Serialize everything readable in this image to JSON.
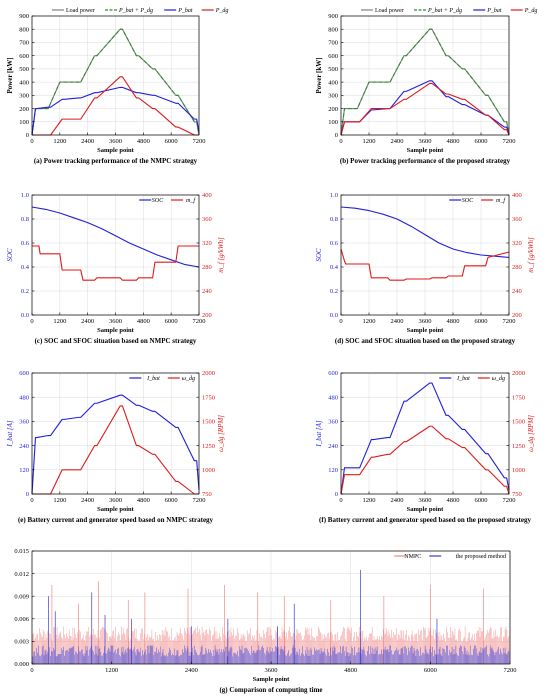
{
  "chart_data": [
    {
      "type": "line",
      "caption": "(a) Power tracking performance of the NMPC strategy",
      "xlabel": "Sample point",
      "ylabel": "Power [kW]",
      "xlim": [
        0,
        7200
      ],
      "ylim": [
        0,
        900
      ],
      "xticks": [
        0,
        1200,
        2400,
        3600,
        4800,
        6000,
        7200
      ],
      "yticks": [
        0,
        100,
        200,
        300,
        400,
        500,
        600,
        700,
        800,
        900
      ],
      "grid": true,
      "legend": "top",
      "series": [
        {
          "name": "Load power",
          "color": "#808080",
          "dash": false,
          "x": [
            0,
            150,
            200,
            600,
            700,
            1200,
            1300,
            2000,
            2100,
            2700,
            2800,
            3800,
            3900,
            4500,
            4600,
            5200,
            5300,
            6200,
            6300,
            7000,
            7100,
            7200
          ],
          "y": [
            0,
            200,
            200,
            200,
            200,
            400,
            400,
            400,
            400,
            600,
            600,
            800,
            800,
            600,
            600,
            500,
            500,
            300,
            300,
            100,
            100,
            0
          ]
        },
        {
          "name": "P_bat + P_dg",
          "color": "#2e8b2e",
          "dash": true,
          "x": [
            0,
            150,
            200,
            600,
            700,
            1200,
            1300,
            2000,
            2100,
            2700,
            2800,
            3800,
            3900,
            4500,
            4600,
            5200,
            5300,
            6200,
            6300,
            7000,
            7100,
            7200
          ],
          "y": [
            0,
            200,
            200,
            200,
            200,
            400,
            400,
            400,
            400,
            600,
            600,
            800,
            800,
            600,
            600,
            500,
            500,
            300,
            300,
            100,
            100,
            0
          ]
        },
        {
          "name": "P_bat",
          "color": "#1f1fdd",
          "dash": false,
          "x": [
            0,
            150,
            200,
            700,
            800,
            1300,
            1400,
            2000,
            2100,
            2700,
            2800,
            3800,
            3900,
            4500,
            4600,
            5200,
            5300,
            6200,
            6300,
            7000,
            7100,
            7200
          ],
          "y": [
            0,
            200,
            200,
            210,
            210,
            270,
            270,
            280,
            280,
            320,
            320,
            360,
            360,
            320,
            320,
            300,
            300,
            240,
            240,
            120,
            120,
            20
          ]
        },
        {
          "name": "P_dg",
          "color": "#e01a1a",
          "dash": false,
          "x": [
            0,
            700,
            800,
            1300,
            1400,
            2000,
            2100,
            2700,
            2800,
            3800,
            3900,
            4500,
            4600,
            5200,
            5300,
            6200,
            6300,
            7000,
            7100,
            7200
          ],
          "y": [
            0,
            0,
            0,
            120,
            120,
            120,
            120,
            280,
            280,
            440,
            440,
            280,
            280,
            200,
            200,
            60,
            60,
            0,
            0,
            0
          ]
        }
      ]
    },
    {
      "type": "line",
      "caption": "(b) Power tracking performance of the proposed strategy",
      "xlabel": "Sample point",
      "ylabel": "Power [kW]",
      "xlim": [
        0,
        7200
      ],
      "ylim": [
        0,
        900
      ],
      "xticks": [
        0,
        1200,
        2400,
        3600,
        4800,
        6000,
        7200
      ],
      "yticks": [
        0,
        100,
        200,
        300,
        400,
        500,
        600,
        700,
        800,
        900
      ],
      "grid": true,
      "legend": "top",
      "series": [
        {
          "name": "Load power",
          "color": "#808080",
          "dash": false,
          "x": [
            0,
            150,
            200,
            600,
            700,
            1200,
            1300,
            2000,
            2100,
            2700,
            2800,
            3800,
            3900,
            4500,
            4600,
            5200,
            5300,
            6200,
            6300,
            7000,
            7100,
            7200
          ],
          "y": [
            0,
            200,
            200,
            200,
            200,
            400,
            400,
            400,
            400,
            600,
            600,
            800,
            800,
            600,
            600,
            500,
            500,
            300,
            300,
            100,
            100,
            0
          ]
        },
        {
          "name": "P_bat + P_dg",
          "color": "#2e8b2e",
          "dash": true,
          "x": [
            0,
            150,
            200,
            600,
            700,
            1200,
            1300,
            2000,
            2100,
            2700,
            2800,
            3800,
            3900,
            4500,
            4600,
            5200,
            5300,
            6200,
            6300,
            7000,
            7100,
            7200
          ],
          "y": [
            0,
            200,
            200,
            200,
            200,
            400,
            400,
            400,
            400,
            600,
            600,
            800,
            800,
            600,
            600,
            500,
            500,
            300,
            300,
            100,
            100,
            0
          ]
        },
        {
          "name": "P_bat",
          "color": "#1f1fdd",
          "dash": false,
          "x": [
            0,
            150,
            200,
            700,
            800,
            1300,
            1400,
            2000,
            2100,
            2700,
            2800,
            3800,
            3900,
            4500,
            4600,
            5200,
            5300,
            6200,
            6300,
            7000,
            7100,
            7200
          ],
          "y": [
            0,
            100,
            100,
            100,
            100,
            190,
            190,
            200,
            200,
            330,
            330,
            410,
            410,
            290,
            290,
            230,
            230,
            150,
            150,
            60,
            60,
            0
          ]
        },
        {
          "name": "P_dg",
          "color": "#e01a1a",
          "dash": false,
          "x": [
            0,
            150,
            200,
            700,
            800,
            1300,
            1400,
            2000,
            2100,
            2700,
            2800,
            3800,
            3900,
            4500,
            4600,
            5200,
            5300,
            6200,
            6300,
            7000,
            7100,
            7200
          ],
          "y": [
            0,
            100,
            100,
            100,
            100,
            200,
            200,
            200,
            200,
            270,
            270,
            390,
            390,
            310,
            310,
            270,
            270,
            150,
            150,
            40,
            40,
            0
          ]
        }
      ]
    },
    {
      "type": "line",
      "caption": "(c) SOC and SFOC situation based on NMPC strategy",
      "xlabel": "Sample point",
      "ylabel": "SOC",
      "ylabel_right": "m_f [g/kWh]",
      "xlim": [
        0,
        7200
      ],
      "ylim": [
        0,
        1.0
      ],
      "ylim_right": [
        200,
        400
      ],
      "xticks": [
        0,
        1200,
        2400,
        3600,
        4800,
        6000,
        7200
      ],
      "yticks": [
        0.0,
        0.2,
        0.4,
        0.6,
        0.8,
        1.0
      ],
      "yticks_right": [
        200,
        240,
        280,
        320,
        360,
        400
      ],
      "grid": true,
      "legend": "top-right",
      "series": [
        {
          "name": "SOC",
          "axis": "left",
          "color": "#1f1fdd",
          "x": [
            0,
            600,
            1200,
            1800,
            2400,
            3000,
            3600,
            4200,
            4800,
            5400,
            6000,
            6600,
            7200
          ],
          "y": [
            0.9,
            0.88,
            0.85,
            0.81,
            0.77,
            0.72,
            0.66,
            0.6,
            0.55,
            0.5,
            0.46,
            0.42,
            0.4
          ]
        },
        {
          "name": "m_f",
          "axis": "right",
          "color": "#e01a1a",
          "x": [
            0,
            300,
            350,
            1200,
            1300,
            2100,
            2200,
            2700,
            2800,
            3800,
            3900,
            4500,
            4600,
            5200,
            5300,
            6200,
            6300,
            7200
          ],
          "y": [
            315,
            315,
            302,
            302,
            275,
            275,
            258,
            258,
            262,
            262,
            258,
            258,
            262,
            262,
            288,
            288,
            315,
            315
          ]
        }
      ]
    },
    {
      "type": "line",
      "caption": "(d) SOC and SFOC situation based on the proposed strategy",
      "xlabel": "Sample point",
      "ylabel": "SOC",
      "ylabel_right": "m_f [g/kWh]",
      "xlim": [
        0,
        7200
      ],
      "ylim": [
        0,
        1.0
      ],
      "ylim_right": [
        200,
        400
      ],
      "xticks": [
        0,
        1200,
        2400,
        3600,
        4800,
        6000,
        7200
      ],
      "yticks": [
        0.0,
        0.2,
        0.4,
        0.6,
        0.8,
        1.0
      ],
      "yticks_right": [
        200,
        240,
        280,
        320,
        360,
        400
      ],
      "grid": true,
      "legend": "top-right",
      "series": [
        {
          "name": "SOC",
          "axis": "left",
          "color": "#1f1fdd",
          "x": [
            0,
            600,
            1200,
            1800,
            2400,
            3000,
            3600,
            4200,
            4800,
            5400,
            6000,
            6600,
            7200
          ],
          "y": [
            0.9,
            0.89,
            0.87,
            0.84,
            0.8,
            0.74,
            0.67,
            0.6,
            0.55,
            0.52,
            0.5,
            0.49,
            0.48
          ]
        },
        {
          "name": "m_f",
          "axis": "right",
          "color": "#e01a1a",
          "x": [
            0,
            150,
            200,
            1200,
            1300,
            2000,
            2100,
            2700,
            2800,
            3800,
            3900,
            4500,
            4600,
            5200,
            5300,
            6200,
            6300,
            7200
          ],
          "y": [
            310,
            290,
            285,
            285,
            262,
            262,
            258,
            258,
            260,
            260,
            262,
            262,
            265,
            265,
            282,
            282,
            296,
            305
          ]
        }
      ]
    },
    {
      "type": "line",
      "caption": "(e) Battery current and generator speed based on NMPC strategy",
      "xlabel": "Sample point",
      "ylabel": "I_bat [A]",
      "ylabel_right": "ω_dg [RPM]",
      "xlim": [
        0,
        7200
      ],
      "ylim": [
        0,
        600
      ],
      "ylim_right": [
        750,
        2000
      ],
      "xticks": [
        0,
        1200,
        2400,
        3600,
        4800,
        6000,
        7200
      ],
      "yticks": [
        0,
        120,
        240,
        360,
        480,
        600
      ],
      "yticks_right": [
        750,
        1000,
        1250,
        1500,
        1750,
        2000
      ],
      "grid": true,
      "legend": "top-right",
      "series": [
        {
          "name": "I_bat",
          "axis": "left",
          "color": "#1f1fdd",
          "x": [
            0,
            150,
            200,
            700,
            800,
            1300,
            1400,
            2000,
            2100,
            2700,
            2800,
            3800,
            3900,
            4500,
            4600,
            5200,
            5300,
            6200,
            6300,
            7000,
            7100,
            7200
          ],
          "y": [
            0,
            280,
            280,
            290,
            290,
            370,
            370,
            380,
            380,
            450,
            450,
            490,
            490,
            440,
            440,
            410,
            410,
            330,
            330,
            165,
            165,
            20
          ]
        },
        {
          "name": "ω_dg",
          "axis": "right",
          "color": "#e01a1a",
          "x": [
            0,
            700,
            800,
            1300,
            1400,
            2000,
            2100,
            2700,
            2800,
            3800,
            3900,
            4500,
            4600,
            5200,
            5300,
            6200,
            6300,
            7000,
            7100,
            7200
          ],
          "y": [
            750,
            750,
            750,
            1000,
            1000,
            1000,
            1000,
            1250,
            1250,
            1660,
            1660,
            1250,
            1250,
            1160,
            1160,
            880,
            880,
            750,
            750,
            750
          ]
        }
      ]
    },
    {
      "type": "line",
      "caption": "(f) Battery current and generator speed based on the proposed strategy",
      "xlabel": "Sample point",
      "ylabel": "I_bat [A]",
      "ylabel_right": "ω_dg [RPM]",
      "xlim": [
        0,
        7200
      ],
      "ylim": [
        0,
        600
      ],
      "ylim_right": [
        750,
        2000
      ],
      "xticks": [
        0,
        1200,
        2400,
        3600,
        4800,
        6000,
        7200
      ],
      "yticks": [
        0,
        120,
        240,
        360,
        480,
        600
      ],
      "yticks_right": [
        750,
        1000,
        1250,
        1500,
        1750,
        2000
      ],
      "grid": true,
      "legend": "top-right",
      "series": [
        {
          "name": "I_bat",
          "axis": "left",
          "color": "#1f1fdd",
          "x": [
            0,
            150,
            200,
            700,
            800,
            1300,
            1400,
            2000,
            2100,
            2700,
            2800,
            3800,
            3900,
            4500,
            4600,
            5200,
            5300,
            6200,
            6300,
            7000,
            7100,
            7200
          ],
          "y": [
            0,
            130,
            130,
            130,
            130,
            270,
            270,
            280,
            280,
            460,
            460,
            550,
            550,
            390,
            390,
            320,
            320,
            200,
            200,
            80,
            80,
            20
          ]
        },
        {
          "name": "ω_dg",
          "axis": "right",
          "color": "#e01a1a",
          "x": [
            0,
            150,
            200,
            700,
            800,
            1300,
            1400,
            2000,
            2100,
            2700,
            2800,
            3800,
            3900,
            4500,
            4600,
            5200,
            5300,
            6200,
            6300,
            7000,
            7100,
            7200
          ],
          "y": [
            750,
            950,
            950,
            950,
            950,
            1130,
            1130,
            1160,
            1160,
            1290,
            1290,
            1450,
            1450,
            1320,
            1320,
            1230,
            1230,
            1000,
            1000,
            830,
            830,
            750
          ]
        }
      ]
    },
    {
      "type": "bar",
      "caption": "(g) Comparison of computing time",
      "xlabel": "Sample point",
      "xlim": [
        0,
        7200
      ],
      "ylim": [
        0,
        0.015
      ],
      "xticks": [
        0,
        1200,
        2400,
        3600,
        4800,
        6000,
        7200
      ],
      "yticks": [
        0.0,
        0.003,
        0.006,
        0.009,
        0.012,
        0.015
      ],
      "grid": true,
      "legend": "top-right",
      "series": [
        {
          "name": "NMPC",
          "color": "#f08a8a",
          "typical_range": [
            0.003,
            0.005
          ],
          "spike_x": [
            300,
            700,
            1000,
            1450,
            1700,
            2350,
            2900,
            3400,
            3800,
            4500,
            5300,
            6000,
            6800
          ],
          "spike_y": [
            0.0105,
            0.008,
            0.011,
            0.0085,
            0.0095,
            0.01,
            0.0105,
            0.0095,
            0.009,
            0.0085,
            0.009,
            0.0105,
            0.01
          ]
        },
        {
          "name": "the proposed method",
          "color": "#3c3cd0",
          "typical_range": [
            0.001,
            0.0025
          ],
          "spike_x": [
            250,
            350,
            900,
            1100,
            1500,
            2400,
            2950,
            3700,
            3950,
            4950,
            6100
          ],
          "spike_y": [
            0.009,
            0.007,
            0.0095,
            0.0065,
            0.006,
            0.005,
            0.006,
            0.005,
            0.008,
            0.0125,
            0.006
          ]
        }
      ]
    }
  ]
}
